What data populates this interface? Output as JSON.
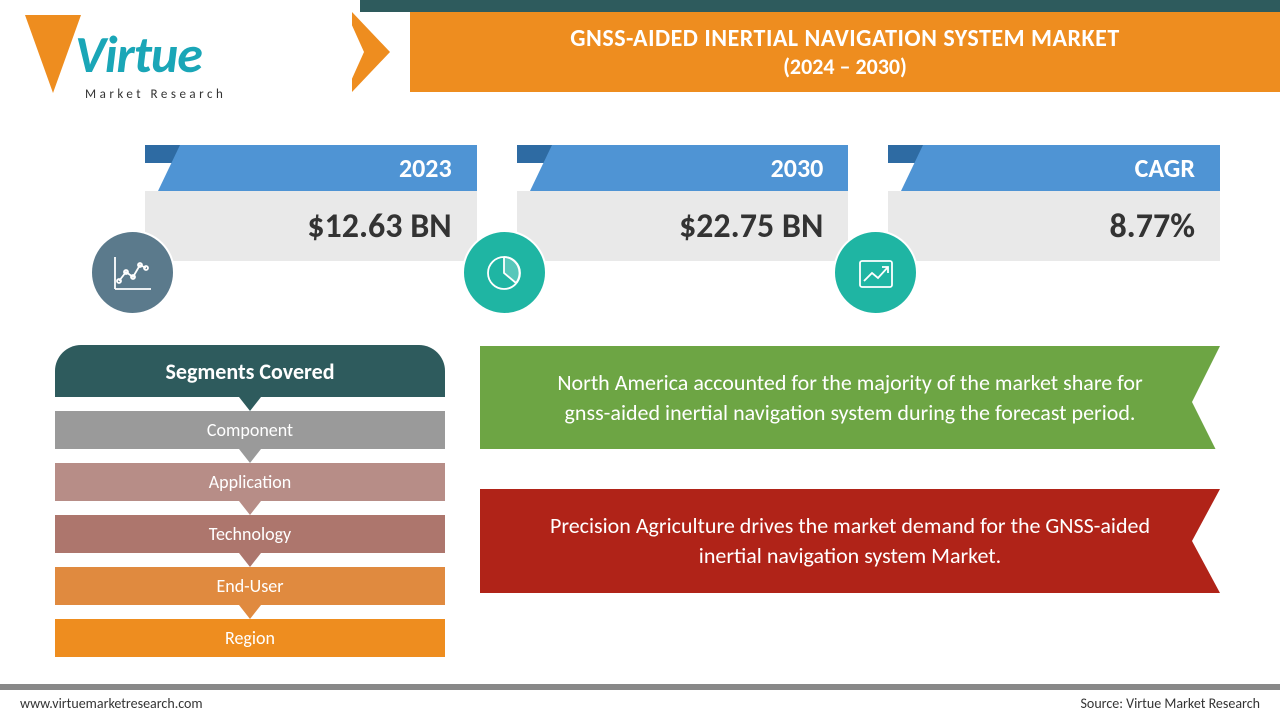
{
  "logo": {
    "main": "Virtue",
    "sub": "Market Research"
  },
  "title": {
    "line1": "GNSS-AIDED INERTIAL NAVIGATION SYSTEM MARKET",
    "line2": "(2024 – 2030)"
  },
  "stats": [
    {
      "label": "2023",
      "value": "$12.63 BN",
      "icon_color": "#5b7a8c"
    },
    {
      "label": "2030",
      "value": "$22.75 BN",
      "icon_color": "#1fb5a3"
    },
    {
      "label": "CAGR",
      "value": "8.77%",
      "icon_color": "#1fb5a3"
    }
  ],
  "segments": {
    "header": "Segments Covered",
    "items": [
      {
        "label": "Component",
        "color": "#9a9a9a"
      },
      {
        "label": "Application",
        "color": "#b78d87"
      },
      {
        "label": "Technology",
        "color": "#ad766d"
      },
      {
        "label": "End-User",
        "color": "#e08a3f"
      },
      {
        "label": "Region",
        "color": "#ee8d1f"
      }
    ]
  },
  "insights": {
    "green": "North America accounted for the majority of the market share for gnss-aided inertial navigation system during the forecast period.",
    "red": "Precision Agriculture drives the market demand for the GNSS-aided inertial navigation system Market."
  },
  "footer": {
    "left": "www.virtuemarketresearch.com",
    "right": "Source: Virtue Market Research"
  },
  "colors": {
    "banner": "#ee8d1f",
    "tab": "#4f94d4",
    "tab_fold": "#2e6ba3",
    "stat_body": "#e9e9e9",
    "seg_header": "#2e5b5d",
    "green": "#6da544",
    "red": "#b02318",
    "top_accent": "#2e5b5d"
  }
}
